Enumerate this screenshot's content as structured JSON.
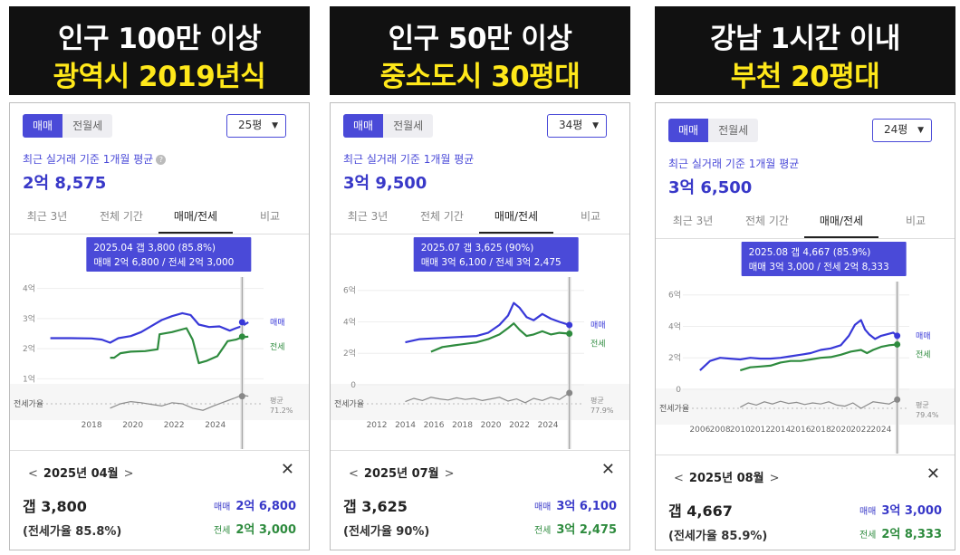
{
  "panels": [
    {
      "banner": {
        "line1": "인구 100만 이상",
        "line2": "광역시 2019년식"
      },
      "toggle": {
        "sale": "매매",
        "rent": "전월세"
      },
      "area": "25평",
      "avg_label": "최근 실거래 기준 1개월 평균",
      "avg_price": "2억 8,575",
      "tabs": [
        "최근 3년",
        "전체 기간",
        "매매/전세",
        "비교"
      ],
      "tooltip": {
        "line1": "2025.04  갭 3,800 (85.8%)",
        "line2": "매매 2억 6,800 / 전세 2억 3,000"
      },
      "detail": {
        "month": "2025년 04월",
        "gap": "갭 3,800",
        "ratio": "(전세가율 85.8%)",
        "sale_key": "매매",
        "sale_val": "2억 6,800",
        "jeonse_key": "전세",
        "jeonse_val": "2억 3,000"
      }
    },
    {
      "banner": {
        "line1": "인구 50만 이상",
        "line2": "중소도시 30평대"
      },
      "toggle": {
        "sale": "매매",
        "rent": "전월세"
      },
      "area": "34평",
      "avg_label": "최근 실거래 기준 1개월 평균",
      "avg_price": "3억 9,500",
      "tabs": [
        "최근 3년",
        "전체 기간",
        "매매/전세",
        "비교"
      ],
      "tooltip": {
        "line1": "2025.07  갭 3,625 (90%)",
        "line2": "매매 3억 6,100 / 전세 3억 2,475"
      },
      "detail": {
        "month": "2025년 07월",
        "gap": "갭 3,625",
        "ratio": "(전세가율 90%)",
        "sale_key": "매매",
        "sale_val": "3억 6,100",
        "jeonse_key": "전세",
        "jeonse_val": "3억 2,475"
      }
    },
    {
      "banner": {
        "line1": "강남 1시간 이내",
        "line2": "부천 20평대"
      },
      "toggle": {
        "sale": "매매",
        "rent": "전월세"
      },
      "area": "24평",
      "avg_label": "최근 실거래 기준 1개월 평균",
      "avg_price": "3억 6,500",
      "tabs": [
        "최근 3년",
        "전체 기간",
        "매매/전세",
        "비교"
      ],
      "tooltip": {
        "line1": "2025.08  갭 4,667 (85.9%)",
        "line2": "매매 3억 3,000 / 전세 2억 8,333"
      },
      "detail": {
        "month": "2025년 08월",
        "gap": "갭 4,667",
        "ratio": "(전세가율 85.9%)",
        "sale_key": "매매",
        "sale_val": "3억 3,000",
        "jeonse_key": "전세",
        "jeonse_val": "2억 8,333"
      }
    }
  ],
  "colors": {
    "sale": "#3838d8",
    "jeonse": "#2e8b3e",
    "ratio": "#8a8a8a",
    "before": "#9a9a9a",
    "banner_yellow": "#ffe81a"
  },
  "icons": {
    "help": "question-circle-icon",
    "prev": "chevron-left-icon",
    "next": "chevron-right-icon",
    "close": "close-icon",
    "dropdown": "caret-down-icon"
  },
  "chart_data": [
    {
      "type": "line",
      "y_unit": "억",
      "ylim": [
        0.8,
        4.2
      ],
      "yticks": [
        1,
        2,
        3,
        4
      ],
      "ytick_labels": [
        "1억",
        "2억",
        "3억",
        "4억"
      ],
      "xlim": [
        2015.8,
        2025.9
      ],
      "xticks": [
        2018,
        2020,
        2022,
        2024
      ],
      "legend": [
        "매매",
        "전세"
      ],
      "ratio_label": "전세가율",
      "ratio_avg_label": "평균",
      "ratio_avg_value": "71.2%",
      "series": [
        {
          "name": "매매",
          "points": [
            [
              2016.0,
              2.35
            ],
            [
              2017.0,
              2.35
            ],
            [
              2018.0,
              2.34
            ],
            [
              2018.5,
              2.3
            ],
            [
              2018.9,
              2.2
            ],
            [
              2019.3,
              2.35
            ],
            [
              2019.9,
              2.42
            ],
            [
              2020.4,
              2.55
            ],
            [
              2020.9,
              2.75
            ],
            [
              2021.4,
              2.95
            ],
            [
              2021.9,
              3.08
            ],
            [
              2022.4,
              3.18
            ],
            [
              2022.8,
              3.12
            ],
            [
              2023.2,
              2.8
            ],
            [
              2023.7,
              2.72
            ],
            [
              2024.2,
              2.74
            ],
            [
              2024.7,
              2.6
            ],
            [
              2025.0,
              2.68
            ],
            [
              2025.3,
              2.75
            ],
            [
              2025.6,
              2.88
            ]
          ]
        },
        {
          "name": "전세",
          "points": [
            [
              2018.9,
              1.7
            ],
            [
              2019.1,
              1.7
            ],
            [
              2019.4,
              1.85
            ],
            [
              2019.9,
              1.9
            ],
            [
              2020.6,
              1.92
            ],
            [
              2021.2,
              1.98
            ],
            [
              2021.3,
              2.48
            ],
            [
              2021.9,
              2.55
            ],
            [
              2022.6,
              2.68
            ],
            [
              2022.9,
              2.3
            ],
            [
              2023.2,
              1.52
            ],
            [
              2023.6,
              1.6
            ],
            [
              2024.1,
              1.75
            ],
            [
              2024.6,
              2.25
            ],
            [
              2025.0,
              2.3
            ],
            [
              2025.3,
              2.38
            ],
            [
              2025.6,
              2.4
            ]
          ]
        }
      ],
      "ratio_series": [
        [
          2018.9,
          62
        ],
        [
          2019.4,
          70
        ],
        [
          2019.9,
          74
        ],
        [
          2020.4,
          72
        ],
        [
          2020.9,
          69
        ],
        [
          2021.4,
          66
        ],
        [
          2021.9,
          72
        ],
        [
          2022.4,
          70
        ],
        [
          2022.9,
          62
        ],
        [
          2023.4,
          58
        ],
        [
          2023.9,
          66
        ],
        [
          2024.4,
          73
        ],
        [
          2024.9,
          80
        ],
        [
          2025.3,
          86
        ],
        [
          2025.6,
          84
        ]
      ],
      "marker_x": 2025.3
    },
    {
      "type": "line",
      "y_unit": "억",
      "ylim": [
        0,
        6.5
      ],
      "yticks": [
        0,
        2,
        4,
        6
      ],
      "ytick_labels": [
        "0",
        "2억",
        "4억",
        "6억"
      ],
      "xlim": [
        2011.3,
        2025.9
      ],
      "xticks": [
        2012,
        2014,
        2016,
        2018,
        2020,
        2022,
        2024
      ],
      "legend": [
        "매매",
        "전세"
      ],
      "ratio_label": "전세가율",
      "ratio_avg_label": "평균",
      "ratio_avg_value": "77.9%",
      "series": [
        {
          "name": "매매",
          "points": [
            [
              2014.0,
              2.7
            ],
            [
              2015.0,
              2.9
            ],
            [
              2016.0,
              2.95
            ],
            [
              2017.0,
              3.0
            ],
            [
              2018.0,
              3.05
            ],
            [
              2019.0,
              3.1
            ],
            [
              2019.8,
              3.3
            ],
            [
              2020.6,
              3.8
            ],
            [
              2021.2,
              4.4
            ],
            [
              2021.6,
              5.2
            ],
            [
              2022.0,
              4.9
            ],
            [
              2022.5,
              4.3
            ],
            [
              2023.0,
              4.1
            ],
            [
              2023.6,
              4.5
            ],
            [
              2024.2,
              4.2
            ],
            [
              2024.8,
              4.0
            ],
            [
              2025.5,
              3.8
            ]
          ]
        },
        {
          "name": "전세",
          "points": [
            [
              2015.8,
              2.1
            ],
            [
              2016.6,
              2.4
            ],
            [
              2017.4,
              2.5
            ],
            [
              2018.2,
              2.6
            ],
            [
              2019.0,
              2.7
            ],
            [
              2019.8,
              2.9
            ],
            [
              2020.6,
              3.2
            ],
            [
              2021.2,
              3.6
            ],
            [
              2021.6,
              3.9
            ],
            [
              2022.0,
              3.5
            ],
            [
              2022.5,
              3.1
            ],
            [
              2023.0,
              3.2
            ],
            [
              2023.6,
              3.4
            ],
            [
              2024.2,
              3.2
            ],
            [
              2024.8,
              3.3
            ],
            [
              2025.5,
              3.25
            ]
          ]
        }
      ],
      "ratio_series": [
        [
          2014.0,
          74
        ],
        [
          2014.6,
          80
        ],
        [
          2015.2,
          76
        ],
        [
          2015.8,
          82
        ],
        [
          2016.4,
          79
        ],
        [
          2017.0,
          77
        ],
        [
          2017.6,
          81
        ],
        [
          2018.2,
          78
        ],
        [
          2018.8,
          80
        ],
        [
          2019.4,
          76
        ],
        [
          2020.0,
          79
        ],
        [
          2020.6,
          82
        ],
        [
          2021.2,
          75
        ],
        [
          2021.8,
          79
        ],
        [
          2022.4,
          72
        ],
        [
          2023.0,
          80
        ],
        [
          2023.6,
          76
        ],
        [
          2024.2,
          82
        ],
        [
          2024.8,
          78
        ],
        [
          2025.5,
          90
        ]
      ],
      "marker_x": 2025.5
    },
    {
      "type": "line",
      "y_unit": "억",
      "ylim": [
        0,
        6.5
      ],
      "yticks": [
        0,
        2,
        4,
        6
      ],
      "ytick_labels": [
        "0",
        "2억",
        "4억",
        "6억"
      ],
      "xlim": [
        2005.2,
        2025.9
      ],
      "xticks": [
        2006,
        2008,
        2010,
        2012,
        2014,
        2016,
        2018,
        2020,
        2022,
        2024
      ],
      "legend": [
        "매매",
        "전세"
      ],
      "ratio_label": "전세가율",
      "ratio_avg_label": "평균",
      "ratio_avg_value": "79.4%",
      "series": [
        {
          "name": "매매",
          "points": [
            [
              2006.0,
              1.2
            ],
            [
              2007.0,
              1.8
            ],
            [
              2008.0,
              2.0
            ],
            [
              2009.0,
              1.95
            ],
            [
              2010.0,
              1.9
            ],
            [
              2011.0,
              2.0
            ],
            [
              2012.0,
              1.95
            ],
            [
              2013.0,
              1.95
            ],
            [
              2014.0,
              2.0
            ],
            [
              2015.0,
              2.1
            ],
            [
              2016.0,
              2.2
            ],
            [
              2017.0,
              2.3
            ],
            [
              2018.0,
              2.5
            ],
            [
              2019.0,
              2.6
            ],
            [
              2020.0,
              2.8
            ],
            [
              2020.8,
              3.4
            ],
            [
              2021.4,
              4.1
            ],
            [
              2022.0,
              4.4
            ],
            [
              2022.4,
              3.8
            ],
            [
              2022.8,
              3.5
            ],
            [
              2023.4,
              3.2
            ],
            [
              2024.0,
              3.4
            ],
            [
              2024.6,
              3.5
            ],
            [
              2025.2,
              3.6
            ],
            [
              2025.6,
              3.4
            ]
          ]
        },
        {
          "name": "전세",
          "points": [
            [
              2010.0,
              1.2
            ],
            [
              2011.0,
              1.4
            ],
            [
              2012.0,
              1.45
            ],
            [
              2013.0,
              1.5
            ],
            [
              2014.0,
              1.7
            ],
            [
              2015.0,
              1.8
            ],
            [
              2016.0,
              1.8
            ],
            [
              2017.0,
              1.9
            ],
            [
              2018.0,
              2.0
            ],
            [
              2019.0,
              2.05
            ],
            [
              2020.0,
              2.2
            ],
            [
              2021.0,
              2.4
            ],
            [
              2022.0,
              2.5
            ],
            [
              2022.6,
              2.3
            ],
            [
              2023.2,
              2.5
            ],
            [
              2024.0,
              2.7
            ],
            [
              2024.8,
              2.8
            ],
            [
              2025.6,
              2.85
            ]
          ]
        }
      ],
      "ratio_series": [
        [
          2010.0,
          72
        ],
        [
          2010.8,
          80
        ],
        [
          2011.6,
          76
        ],
        [
          2012.4,
          82
        ],
        [
          2013.2,
          78
        ],
        [
          2014.0,
          83
        ],
        [
          2014.8,
          79
        ],
        [
          2015.6,
          81
        ],
        [
          2016.4,
          77
        ],
        [
          2017.2,
          80
        ],
        [
          2018.0,
          78
        ],
        [
          2018.8,
          82
        ],
        [
          2019.6,
          76
        ],
        [
          2020.4,
          74
        ],
        [
          2021.2,
          80
        ],
        [
          2022.0,
          70
        ],
        [
          2022.6,
          76
        ],
        [
          2023.2,
          82
        ],
        [
          2024.0,
          80
        ],
        [
          2024.8,
          78
        ],
        [
          2025.6,
          86
        ]
      ],
      "marker_x": 2025.6
    }
  ]
}
